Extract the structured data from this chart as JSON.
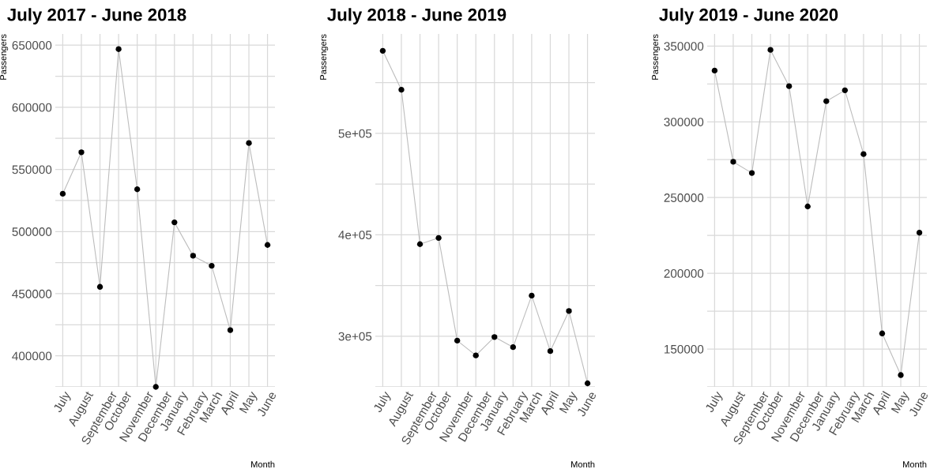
{
  "chart_data": [
    {
      "type": "line",
      "title": "July 2017 - June 2018",
      "xlabel": "Month",
      "ylabel": "Passengers",
      "categories": [
        "July",
        "August",
        "September",
        "October",
        "November",
        "December",
        "January",
        "February",
        "March",
        "April",
        "May",
        "June"
      ],
      "series": [
        {
          "type": "line",
          "color": "#bdbdbd",
          "marker": "none",
          "values": [
            530400,
            563800,
            455500,
            646800,
            534000,
            375000,
            507400,
            480500,
            472400,
            420700,
            571200,
            489200
          ]
        },
        {
          "type": "scatter",
          "color": "#000000",
          "marker": "circle",
          "values": [
            530400,
            563800,
            455500,
            646800,
            534000,
            375000,
            507400,
            480500,
            472400,
            420700,
            571200,
            489200
          ]
        }
      ],
      "ylim": [
        375000,
        659000
      ],
      "yticks": [
        {
          "value": 375000,
          "label": null
        },
        400000,
        {
          "value": 425000,
          "label": null
        },
        450000,
        {
          "value": 475000,
          "label": null
        },
        500000,
        {
          "value": 525000,
          "label": null
        },
        550000,
        {
          "value": 575000,
          "label": null
        },
        600000,
        {
          "value": 625000,
          "label": null
        },
        650000
      ],
      "grid": true,
      "legend": false
    },
    {
      "type": "line",
      "title": "July 2018 - June 2019",
      "xlabel": "Month",
      "ylabel": "Passengers",
      "categories": [
        "July",
        "August",
        "September",
        "October",
        "November",
        "December",
        "January",
        "February",
        "March",
        "April",
        "May",
        "June"
      ],
      "series": [
        {
          "type": "line",
          "color": "#bdbdbd",
          "marker": "none",
          "values": [
            581400,
            543000,
            390700,
            396900,
            295600,
            281000,
            299200,
            289200,
            340000,
            285300,
            324800,
            253500
          ]
        },
        {
          "type": "scatter",
          "color": "#000000",
          "marker": "circle",
          "values": [
            581400,
            543000,
            390700,
            396900,
            295600,
            281000,
            299200,
            289200,
            340000,
            285300,
            324800,
            253500
          ]
        }
      ],
      "ylim": [
        250000,
        598000
      ],
      "yticks": [
        {
          "value": 250000,
          "label": null
        },
        {
          "value": 300000,
          "label": "3e+05"
        },
        {
          "value": 350000,
          "label": null
        },
        {
          "value": 400000,
          "label": "4e+05"
        },
        {
          "value": 450000,
          "label": null
        },
        {
          "value": 500000,
          "label": "5e+05"
        },
        {
          "value": 550000,
          "label": null
        }
      ],
      "grid": true,
      "legend": false
    },
    {
      "type": "line",
      "title": "July 2019 - June 2020",
      "xlabel": "Month",
      "ylabel": "Passengers",
      "categories": [
        "July",
        "August",
        "September",
        "October",
        "November",
        "December",
        "January",
        "February",
        "March",
        "April",
        "May",
        "June"
      ],
      "series": [
        {
          "type": "line",
          "color": "#bdbdbd",
          "marker": "none",
          "values": [
            333800,
            273600,
            266200,
            347500,
            323500,
            244100,
            313600,
            320800,
            278700,
            160300,
            132800,
            226800
          ]
        },
        {
          "type": "scatter",
          "color": "#000000",
          "marker": "circle",
          "values": [
            333800,
            273600,
            266200,
            347500,
            323500,
            244100,
            313600,
            320800,
            278700,
            160300,
            132800,
            226800
          ]
        }
      ],
      "ylim": [
        125000,
        358000
      ],
      "yticks": [
        {
          "value": 125000,
          "label": null
        },
        150000,
        {
          "value": 175000,
          "label": null
        },
        200000,
        {
          "value": 225000,
          "label": null
        },
        250000,
        {
          "value": 275000,
          "label": null
        },
        300000,
        {
          "value": 325000,
          "label": null
        },
        350000
      ],
      "grid": true,
      "legend": false
    }
  ]
}
